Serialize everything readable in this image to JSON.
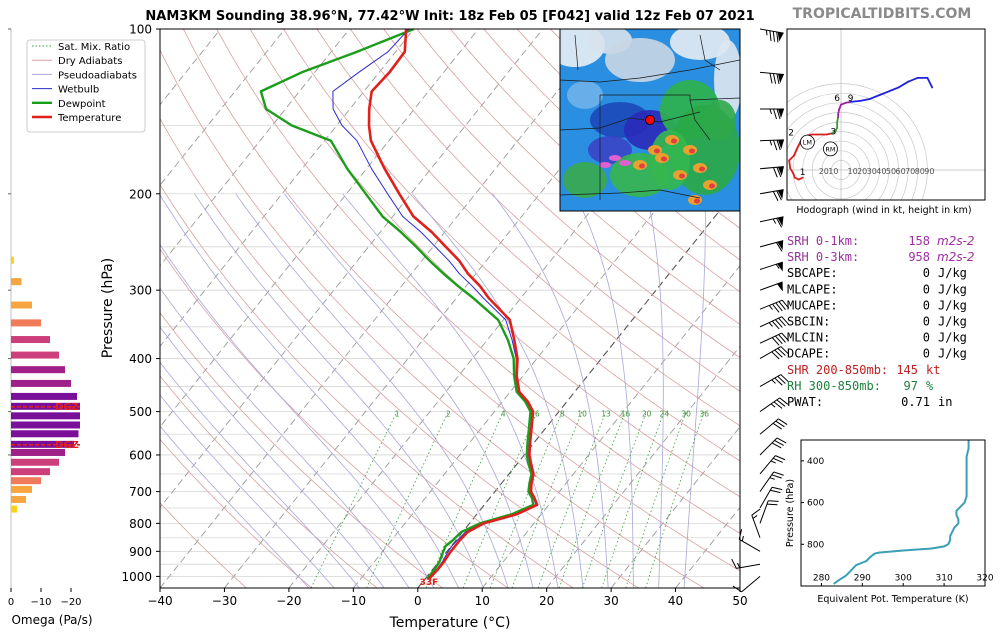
{
  "title": "NAM3KM Sounding 38.96°N, 77.42°W Init: 18z Feb 05 [F042] valid 12z Feb 07 2021",
  "brand": "TROPICALTIDBITS.COM",
  "colors": {
    "temperature": "#e0201b",
    "dewpoint": "#1a9e1a",
    "wetbulb": "#2a2ad0",
    "dry_adiabat": "#d9a0a0",
    "moist_adiabat": "#a8a8d8",
    "mixing_ratio": "#3a9a3a",
    "hodo_low": "#d82020",
    "hodo_mid": "#3a9a3a",
    "hodo_upper": "#a020a0",
    "hodo_top": "#2020e0",
    "theta_e": "#3b9fb5",
    "srh": "#9b30a0",
    "shr": "#c02020",
    "rh": "#208040"
  },
  "chart_data": [
    {
      "type": "line",
      "name": "skewt",
      "xlabel": "Temperature (°C)",
      "ylabel": "Pressure (hPa)",
      "xlim": [
        -40,
        50
      ],
      "ylim": [
        1050,
        100
      ],
      "y_scale": "log",
      "x_ticks": [
        -40,
        -30,
        -20,
        -10,
        0,
        10,
        20,
        30,
        40,
        50
      ],
      "x_tick_labels": [
        "−40",
        "−30",
        "−20",
        "−10",
        "0",
        "10",
        "20",
        "30",
        "40",
        "50"
      ],
      "y_ticks": [
        100,
        200,
        300,
        400,
        500,
        600,
        700,
        800,
        900,
        1000
      ],
      "y_tick_labels": [
        "100",
        "200",
        "300",
        "400",
        "500",
        "600",
        "700",
        "800",
        "900",
        "1000"
      ],
      "legend": [
        {
          "label": "Sat. Mix. Ratio",
          "style": "dotted",
          "color": "#3a9a3a"
        },
        {
          "label": "Dry Adiabats",
          "style": "solid",
          "color": "#d9a0a0"
        },
        {
          "label": "Pseudoadiabats",
          "style": "solid",
          "color": "#a8a8d8"
        },
        {
          "label": "Wetbulb",
          "style": "solid",
          "color": "#2a2ad0"
        },
        {
          "label": "Dewpoint",
          "style": "thick",
          "color": "#1a9e1a"
        },
        {
          "label": "Temperature",
          "style": "thick",
          "color": "#e0201b"
        }
      ],
      "legend_position": "top-left",
      "mixing_ratio_labels": [
        "1",
        "2",
        "4",
        "6",
        "8",
        "10",
        "13",
        "16",
        "20",
        "24",
        "30",
        "36"
      ],
      "mixing_ratio_values": [
        1,
        2,
        4,
        6,
        8,
        10,
        13,
        16,
        20,
        24,
        30,
        36
      ],
      "surface_label": "33F",
      "series": [
        {
          "name": "Temperature",
          "p": [
            1010,
            975,
            940,
            905,
            880,
            860,
            830,
            800,
            770,
            740,
            720,
            700,
            675,
            650,
            620,
            600,
            570,
            540,
            500,
            480,
            460,
            430,
            400,
            370,
            340,
            310,
            295,
            280,
            265,
            250,
            235,
            220,
            200,
            180,
            160,
            150,
            140,
            130,
            120,
            110,
            100
          ],
          "t": [
            0.6,
            0.8,
            0.8,
            0.6,
            0.6,
            0.6,
            0.8,
            2.2,
            6.2,
            8.2,
            7.0,
            5.6,
            4.6,
            3.8,
            2.0,
            0.8,
            -0.6,
            -2.0,
            -4.0,
            -6.0,
            -8.6,
            -11.0,
            -13.0,
            -15.8,
            -19.0,
            -25.0,
            -27.8,
            -31.2,
            -34.2,
            -38.0,
            -42.0,
            -46.8,
            -51.8,
            -57.2,
            -62.8,
            -65.0,
            -67.0,
            -68.8,
            -68.4,
            -68.6,
            -71.2
          ]
        },
        {
          "name": "Dewpoint",
          "p": [
            1010,
            975,
            940,
            905,
            880,
            860,
            830,
            800,
            770,
            740,
            720,
            700,
            675,
            650,
            620,
            600,
            570,
            540,
            500,
            480,
            460,
            430,
            400,
            370,
            340,
            310,
            295,
            280,
            265,
            250,
            235,
            220,
            200,
            180,
            160,
            150,
            140,
            130,
            120,
            110,
            100
          ],
          "t": [
            0.3,
            0.3,
            0.1,
            -0.5,
            -0.9,
            -0.5,
            -0.2,
            1.6,
            5.4,
            7.6,
            6.6,
            5.2,
            4.3,
            3.5,
            1.6,
            0.4,
            -1.0,
            -2.4,
            -4.4,
            -6.4,
            -9.0,
            -11.4,
            -13.6,
            -16.8,
            -20.8,
            -27.4,
            -31.2,
            -35.0,
            -38.8,
            -42.6,
            -46.8,
            -51.6,
            -57.0,
            -63.0,
            -69.0,
            -77.0,
            -83.0,
            -86.0,
            -82.0,
            -76.0,
            -70.0
          ]
        }
      ]
    },
    {
      "type": "bar",
      "name": "omega",
      "xlabel": "Omega (Pa/s)",
      "x_tick_labels": [
        "0",
        "−10",
        "−20"
      ],
      "x_ticks": [
        0,
        -10,
        -20
      ],
      "xlim": [
        0,
        -26
      ],
      "dgz_label": "DGZ",
      "dgz_hpa": [
        490,
        575
      ],
      "p": [
        265,
        290,
        320,
        345,
        370,
        395,
        420,
        445,
        470,
        490,
        510,
        530,
        550,
        575,
        595,
        620,
        645,
        670,
        695,
        725,
        755
      ],
      "values": [
        -1,
        -3.5,
        -7,
        -10,
        -13,
        -16,
        -18,
        -20,
        -22,
        -23,
        -23,
        -23,
        -22.5,
        -21,
        -18,
        -16,
        -13,
        -10,
        -7,
        -5,
        -2
      ]
    },
    {
      "type": "line",
      "name": "hodograph",
      "caption": "Hodograph (wind in kt, height in km)",
      "ring_labels": [
        "10",
        "20",
        "30",
        "40",
        "50",
        "60",
        "70",
        "80",
        "90"
      ],
      "ring_values": [
        10,
        20,
        30,
        40,
        50,
        60,
        70,
        80,
        90
      ],
      "neg_labels": [
        "20",
        "10"
      ],
      "neg_values": [
        -20,
        -10
      ],
      "height_labels": [
        "1",
        "2",
        "3",
        "6",
        "9"
      ],
      "markers": [
        "LM",
        "RM"
      ],
      "marker_uv": [
        [
          -35,
          29
        ],
        [
          -11,
          22
        ]
      ],
      "u": [
        -40,
        -44,
        -48,
        -50,
        -53,
        -54,
        -49,
        -46,
        -42,
        -39,
        -35,
        -30,
        -25,
        -20,
        -15,
        -10,
        -6,
        -4,
        -4,
        -3,
        -3,
        -2,
        0,
        5,
        10,
        20,
        30,
        40,
        50,
        60,
        70,
        80,
        90,
        95
      ],
      "v": [
        -8,
        -10,
        -8,
        -3,
        2,
        10,
        15,
        22,
        30,
        34,
        36,
        37,
        37,
        37,
        37,
        38,
        40,
        44,
        50,
        55,
        58,
        63,
        68,
        70,
        71,
        72,
        74,
        78,
        82,
        86,
        92,
        96,
        96,
        86
      ],
      "segment_colors_index": [
        0,
        0,
        0,
        0,
        0,
        0,
        0,
        0,
        0,
        0,
        0,
        0,
        0,
        0,
        0,
        0,
        1,
        1,
        1,
        1,
        2,
        2,
        2,
        2,
        2,
        3,
        3,
        3,
        3,
        3,
        3,
        3,
        3,
        3
      ],
      "label_positions": [
        [
          -40,
          -5
        ],
        [
          -52,
          36
        ],
        [
          -8,
          37
        ],
        [
          -4,
          72
        ],
        [
          10,
          72
        ]
      ],
      "xlim": [
        -60,
        100
      ],
      "ylim": [
        -20,
        100
      ]
    },
    {
      "type": "line",
      "name": "theta_e",
      "xlabel": "Equivalent Pot. Temperature (K)",
      "ylabel": "Pressure (hPa)",
      "xlim": [
        275,
        320
      ],
      "ylim": [
        1000,
        300
      ],
      "x_ticks": [
        280,
        290,
        300,
        310,
        320
      ],
      "x_tick_labels": [
        "280",
        "290",
        "300",
        "310",
        "320"
      ],
      "y_ticks": [
        400,
        600,
        800
      ],
      "y_tick_labels": [
        "400",
        "600",
        "800"
      ],
      "p": [
        990,
        975,
        950,
        930,
        900,
        880,
        860,
        845,
        840,
        830,
        820,
        810,
        800,
        780,
        760,
        740,
        720,
        700,
        680,
        660,
        640,
        620,
        600,
        570,
        540,
        500,
        460,
        420,
        380,
        340,
        300
      ],
      "theta_e": [
        283,
        284,
        286,
        287,
        288.5,
        291,
        292,
        293,
        294,
        300,
        307,
        310,
        311,
        311.5,
        311.5,
        312,
        312.5,
        313.5,
        313.5,
        313,
        313,
        314,
        315,
        315.5,
        315.5,
        315.5,
        315.5,
        315.5,
        315.5,
        316,
        316
      ]
    }
  ],
  "map": {
    "location_label": "38.96°N, 77.42°W"
  },
  "winds": [
    {
      "p": 100,
      "spd": 85,
      "dir": 280
    },
    {
      "p": 120,
      "spd": 80,
      "dir": 275
    },
    {
      "p": 140,
      "spd": 75,
      "dir": 270
    },
    {
      "p": 160,
      "spd": 75,
      "dir": 268
    },
    {
      "p": 180,
      "spd": 70,
      "dir": 265
    },
    {
      "p": 200,
      "spd": 70,
      "dir": 260
    },
    {
      "p": 225,
      "spd": 65,
      "dir": 258
    },
    {
      "p": 250,
      "spd": 60,
      "dir": 255
    },
    {
      "p": 275,
      "spd": 55,
      "dir": 252
    },
    {
      "p": 300,
      "spd": 50,
      "dir": 250
    },
    {
      "p": 325,
      "spd": 45,
      "dir": 248
    },
    {
      "p": 350,
      "spd": 45,
      "dir": 245
    },
    {
      "p": 375,
      "spd": 40,
      "dir": 245
    },
    {
      "p": 400,
      "spd": 40,
      "dir": 240
    },
    {
      "p": 450,
      "spd": 35,
      "dir": 240
    },
    {
      "p": 500,
      "spd": 35,
      "dir": 235
    },
    {
      "p": 550,
      "spd": 30,
      "dir": 230
    },
    {
      "p": 600,
      "spd": 30,
      "dir": 225
    },
    {
      "p": 650,
      "spd": 25,
      "dir": 220
    },
    {
      "p": 700,
      "spd": 25,
      "dir": 215
    },
    {
      "p": 750,
      "spd": 20,
      "dir": 210
    },
    {
      "p": 800,
      "spd": 20,
      "dir": 200
    },
    {
      "p": 850,
      "spd": 15,
      "dir": 160
    },
    {
      "p": 900,
      "spd": 15,
      "dir": 120
    },
    {
      "p": 950,
      "spd": 15,
      "dir": 80
    },
    {
      "p": 1000,
      "spd": 10,
      "dir": 50
    }
  ],
  "indices": [
    {
      "label": "SRH 0-1km:",
      "value": "158",
      "unit": "m2s-2",
      "kind": "srh"
    },
    {
      "label": "SRH 0-3km:",
      "value": "958",
      "unit": "m2s-2",
      "kind": "srh"
    },
    {
      "label": "SBCAPE:",
      "value": "0",
      "unit": "J/kg",
      "kind": "plain"
    },
    {
      "label": "MLCAPE:",
      "value": "0",
      "unit": "J/kg",
      "kind": "plain"
    },
    {
      "label": "MUCAPE:",
      "value": "0",
      "unit": "J/kg",
      "kind": "plain"
    },
    {
      "label": "SBCIN:",
      "value": "0",
      "unit": "J/kg",
      "kind": "plain"
    },
    {
      "label": "MLCIN:",
      "value": "0",
      "unit": "J/kg",
      "kind": "plain"
    },
    {
      "label": "DCAPE:",
      "value": "0",
      "unit": "J/kg",
      "kind": "plain"
    },
    {
      "label": "SHR 200-850mb:",
      "value": "145",
      "unit": "kt",
      "kind": "shr"
    },
    {
      "label": "RH 300-850mb:",
      "value": "97",
      "unit": "%",
      "kind": "rh"
    },
    {
      "label": "PWAT:",
      "value": "0.71",
      "unit": "in",
      "kind": "plain"
    }
  ]
}
